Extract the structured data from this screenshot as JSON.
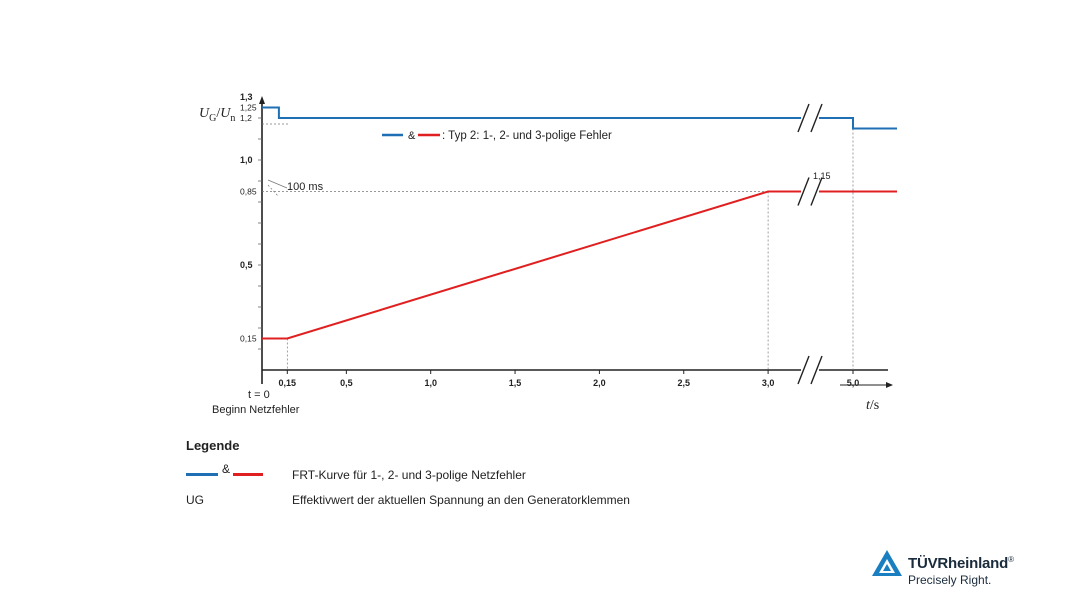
{
  "chart_data": {
    "type": "line",
    "title": "",
    "ylabel": {
      "var": "U",
      "var_sub": "G",
      "sep": "/",
      "ref": "U",
      "ref_sub": "n"
    },
    "xlabel": {
      "var": "t",
      "unit": "/s"
    },
    "xlim": [
      0,
      5.0
    ],
    "ylim": [
      0,
      1.3
    ],
    "x_ticks": [
      "0,15",
      "0,5",
      "1,0",
      "1,5",
      "2,0",
      "2,5",
      "3,0",
      "5,0"
    ],
    "y_ticks": [
      "1,3",
      "1,25",
      "1,2",
      "1,0",
      "0,85",
      "0,5",
      "0,15"
    ],
    "legend_inline": {
      "amp": "&",
      "text": ": Typ 2: 1-, 2- und 3-polige Fehler"
    },
    "annotations": {
      "ms": "100 ms",
      "t0": "t = 0",
      "fault_start": "Beginn Netzfehler",
      "upper_end": "1,15"
    },
    "series": [
      {
        "color": "#1f6fb5",
        "points": [
          [
            0,
            1.25
          ],
          [
            0.1,
            1.25
          ],
          [
            0.1,
            1.2
          ],
          [
            5.0,
            1.2
          ],
          [
            5.0,
            1.15
          ],
          [
            5.25,
            1.15
          ]
        ]
      },
      {
        "color": "#e02020",
        "points": [
          [
            0,
            0.15
          ],
          [
            0.15,
            0.15
          ],
          [
            3.0,
            0.85
          ],
          [
            5.25,
            0.85
          ]
        ]
      }
    ]
  },
  "legend": {
    "title": "Legende",
    "amp": "&",
    "row1_desc": "FRT-Kurve für 1-, 2- und 3-polige Netzfehler",
    "row2_key": "UG",
    "row2_desc": "Effektivwert der aktuellen Spannung an den Generatorklemmen",
    "colors": {
      "blue": "#1f6fb5",
      "red": "#e02020"
    }
  },
  "logo": {
    "name": "TÜVRheinland",
    "reg": "®",
    "tagline": "Precisely Right."
  }
}
